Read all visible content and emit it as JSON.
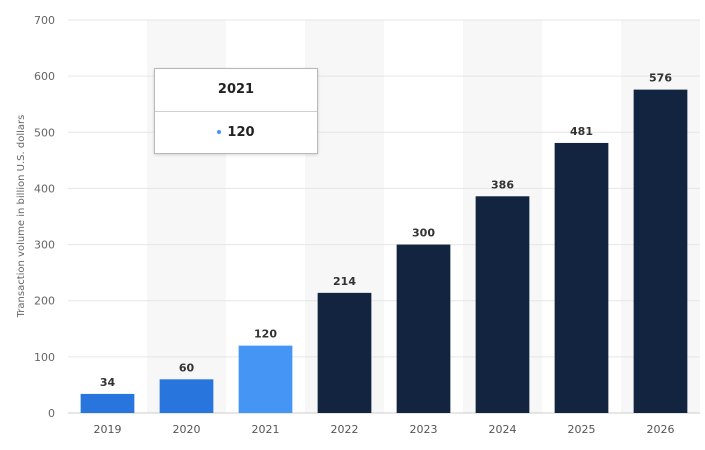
{
  "chart_data": {
    "type": "bar",
    "categories": [
      "2019",
      "2020",
      "2021",
      "2022",
      "2023",
      "2024",
      "2025",
      "2026"
    ],
    "values": [
      34,
      60,
      120,
      214,
      300,
      386,
      481,
      576
    ],
    "data_labels": [
      "34",
      "60",
      "120",
      "214",
      "300",
      "386",
      "481",
      "576"
    ],
    "bar_colors": [
      "#2876dd",
      "#2876dd",
      "#4595f5",
      "#12243f",
      "#12243f",
      "#12243f",
      "#12243f",
      "#12243f"
    ],
    "ylabel": "Transaction volume in billion U.S. dollars",
    "xlabel": "",
    "ylim": [
      0,
      700
    ],
    "yticks": [
      0,
      100,
      200,
      300,
      400,
      500,
      600,
      700
    ],
    "ytick_labels": [
      "0",
      "100",
      "200",
      "300",
      "400",
      "500",
      "600",
      "700"
    ],
    "grid": true,
    "alternating_column_shading": true,
    "shading_color": "#f7f7f7",
    "grid_color": "#e6e6e6"
  },
  "tooltip": {
    "title": "2021",
    "value": "120",
    "color": "#4595f5"
  }
}
